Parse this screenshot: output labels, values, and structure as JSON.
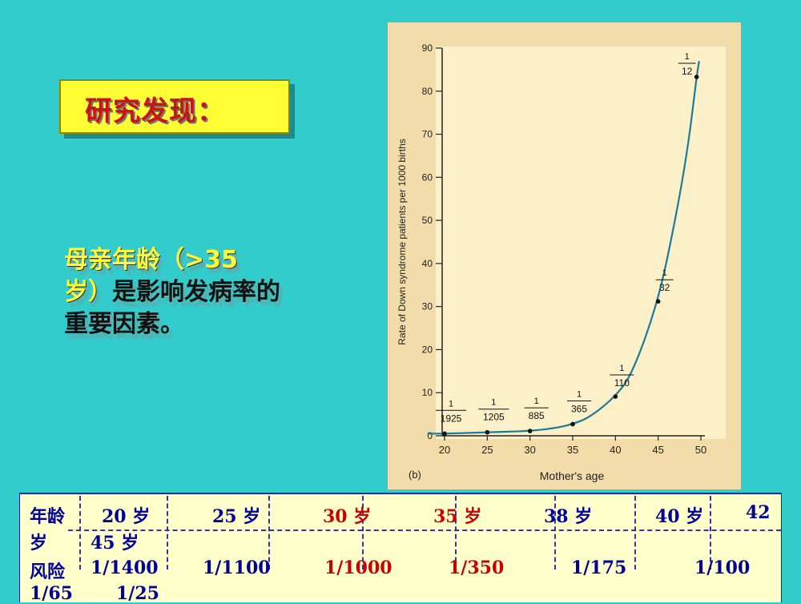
{
  "heading": "研究发现：",
  "finding": {
    "bullet": "",
    "part_highlight_1": "母亲年龄（",
    "part_highlight_2": ">35",
    "part_highlight_3": "岁）",
    "part_rest": "是影响发病率的",
    "line3": "重要因素。"
  },
  "chart_data": {
    "type": "line",
    "title": "",
    "xlabel": "Mother's age",
    "ylabel": "Rate of Down syndrome patients per 1000 births",
    "panel_label": "(b)",
    "xlim": [
      18,
      53
    ],
    "ylim": [
      0,
      90
    ],
    "xticks": [
      "20",
      "25",
      "30",
      "35",
      "40",
      "45",
      "50"
    ],
    "yticks": [
      "0",
      "10",
      "20",
      "30",
      "40",
      "50",
      "60",
      "70",
      "80",
      "90"
    ],
    "points": [
      {
        "x": 20,
        "y": 0.5,
        "label_top": "1",
        "label_bottom": "1925"
      },
      {
        "x": 25,
        "y": 0.8,
        "label_top": "1",
        "label_bottom": "1205"
      },
      {
        "x": 30,
        "y": 1.1,
        "label_top": "1",
        "label_bottom": "885"
      },
      {
        "x": 35,
        "y": 2.7,
        "label_top": "1",
        "label_bottom": "365"
      },
      {
        "x": 40,
        "y": 9.1,
        "label_top": "1",
        "label_bottom": "110"
      },
      {
        "x": 45,
        "y": 31.2,
        "label_top": "1",
        "label_bottom": "32"
      },
      {
        "x": 49.5,
        "y": 83.3,
        "label_top": "1",
        "label_bottom": "12"
      }
    ],
    "curve": [
      [
        18,
        0.5
      ],
      [
        20,
        0.5
      ],
      [
        25,
        0.8
      ],
      [
        30,
        1.1
      ],
      [
        33,
        1.8
      ],
      [
        35,
        2.7
      ],
      [
        37,
        4.3
      ],
      [
        40,
        9.1
      ],
      [
        42,
        14.5
      ],
      [
        45,
        31.2
      ],
      [
        47,
        50
      ],
      [
        48.5,
        67
      ],
      [
        49.5,
        83.3
      ],
      [
        49.8,
        87
      ]
    ],
    "grid": false,
    "colors": {
      "curve": "#1e7a9a",
      "point": "#111111",
      "panel": "#f2dcaa",
      "plot": "#fbf0c8"
    }
  },
  "table": {
    "row1": {
      "label": "年龄",
      "cols": [
        "20 岁",
        "25 岁",
        "30 岁",
        "35 岁",
        "38 岁",
        "40 岁",
        "42"
      ]
    },
    "row2": {
      "label": "岁",
      "col": "45 岁"
    },
    "row3": {
      "label": "风险",
      "cols": [
        "1/1400",
        "1/1100",
        "1/1000",
        "1/350",
        "1/175",
        "1/100"
      ]
    },
    "row4": {
      "cols": [
        "1/65",
        "1/25"
      ]
    },
    "red_cols": [
      2,
      3
    ]
  }
}
